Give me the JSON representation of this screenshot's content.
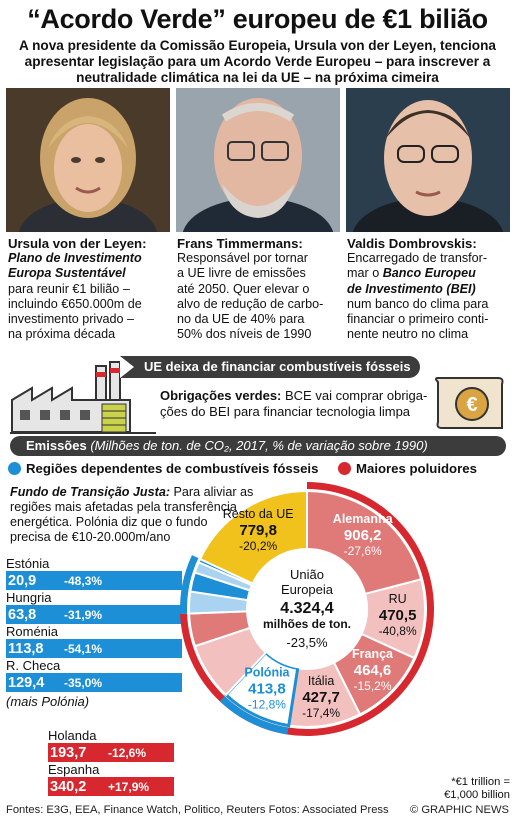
{
  "title": "“Acordo Verde” europeu de €1 bilião",
  "subtitle": "A nova presidente da Comissão Europeia, Ursula von der Leyen, tenciona apresentar legislação para um Acordo Verde Europeu – para inscrever a neutralidade climática na lei da UE – na próxima cimeira",
  "people": [
    {
      "name": "Ursula von der Leyen:",
      "l1": "Plano de Investimento",
      "l2": "Europa Sustentável",
      "l3": "para reunir €1 bilião –",
      "l4": "incluindo €650.000m de",
      "l5": "investimento privado –",
      "l6": "na próxima década"
    },
    {
      "name": "Frans Timmermans:",
      "l1": "Responsável por tornar",
      "l2": "a UE livre de emissões",
      "l3": "até 2050. Quer elevar o",
      "l4": "alvo de redução de carbo-",
      "l5": "no da UE de 40% para",
      "l6": "50% dos níveis de 1990"
    },
    {
      "name": "Valdis Dombrovskis:",
      "l1": "Encarregado de transfor-",
      "l2a": "mar o ",
      "l2b": "Banco Europeu",
      "l3": "de Investimento (BEI)",
      "l4": "num banco do clima para",
      "l5": "financiar o primeiro conti-",
      "l6": "nente neutro no clima"
    }
  ],
  "banner": "UE deixa de financiar combustíveis fósseis",
  "bonds": {
    "bold": "Obrigações verdes:",
    "l1": " BCE vai comprar obriga-",
    "l2": "ções do BEI para financiar tecnologia limpa"
  },
  "emissions": {
    "bold": "Emissões",
    "rest": " (Milhões de ton. de CO₂, 2017, % de variação sobre 1990)"
  },
  "legend": {
    "left": "Regiões dependentes de combustíveis fósseis",
    "right": "Maiores poluidores"
  },
  "fund": {
    "bold": "Fundo de Transição Justa:",
    "l1": " Para aliviar as",
    "l2": "regiões mais afetadas pela transferência",
    "l3": "energética. Polónia diz que o fundo",
    "l4": "precisa de €10-20.000m/ano"
  },
  "blue_countries": [
    {
      "name": "Estónia",
      "value": "20,9",
      "pct": "-48,3%"
    },
    {
      "name": "Hungria",
      "value": "63,8",
      "pct": "-31,9%"
    },
    {
      "name": "Roménia",
      "value": "113,8",
      "pct": "-54,1%"
    },
    {
      "name": "R. Checa",
      "value": "129,4",
      "pct": "-35,0%"
    }
  ],
  "mais_polonia": "(mais Polónia)",
  "red_countries": [
    {
      "name": "Holanda",
      "value": "193,7",
      "pct": "-12,6%"
    },
    {
      "name": "Espanha",
      "value": "340,2",
      "pct": "+17,9%"
    }
  ],
  "chart_data": {
    "type": "pie",
    "title": "Emissões",
    "unit": "Milhões de ton. de CO₂, 2017, % de variação sobre 1990",
    "center": {
      "l1": "União",
      "l2": "Europeia",
      "value": "4.324,4",
      "unit": "milhões de ton.",
      "pct": "-23,5%"
    },
    "slices": [
      {
        "name": "Alemanha",
        "value": 906.2,
        "label": "906,2",
        "pct": "-27,6%"
      },
      {
        "name": "RU",
        "value": 470.5,
        "label": "470,5",
        "pct": "-40,8%"
      },
      {
        "name": "França",
        "value": 464.6,
        "label": "464,6",
        "pct": "-15,2%"
      },
      {
        "name": "Itália",
        "value": 427.7,
        "label": "427,7",
        "pct": "-17,4%"
      },
      {
        "name": "Polónia",
        "value": 413.8,
        "label": "413,8",
        "pct": "-12,8%"
      },
      {
        "name": "Espanha",
        "value": 340.2,
        "label": "340,2",
        "pct": "+17,9%"
      },
      {
        "name": "Holanda",
        "value": 193.7,
        "label": "193,7",
        "pct": "-12,6%"
      },
      {
        "name": "R. Checa",
        "value": 129.4,
        "label": "129,4",
        "pct": "-35,0%"
      },
      {
        "name": "Roménia",
        "value": 113.8,
        "label": "113,8",
        "pct": "-54,1%"
      },
      {
        "name": "Hungria",
        "value": 63.8,
        "label": "63,8",
        "pct": "-31,9%"
      },
      {
        "name": "Estónia",
        "value": 20.9,
        "label": "20,9",
        "pct": "-48,3%"
      },
      {
        "name": "Resto da UE",
        "value": 779.8,
        "label": "779,8",
        "pct": "-20,2%"
      }
    ],
    "colors": {
      "red": "#d7282f",
      "red_light": "#e07a78",
      "pink": "#f2c1bf",
      "blue": "#1c8fd6",
      "blue_light": "#a9d3f0",
      "yellow": "#f1c21b"
    }
  },
  "footnote": {
    "l1": "*€1 trillion =",
    "l2": "€1,000 billion"
  },
  "sources": "Fontes: E3G, EEA, Finance Watch, Politico, Reuters    Fotos: Associated Press",
  "copyright": "© GRAPHIC NEWS"
}
